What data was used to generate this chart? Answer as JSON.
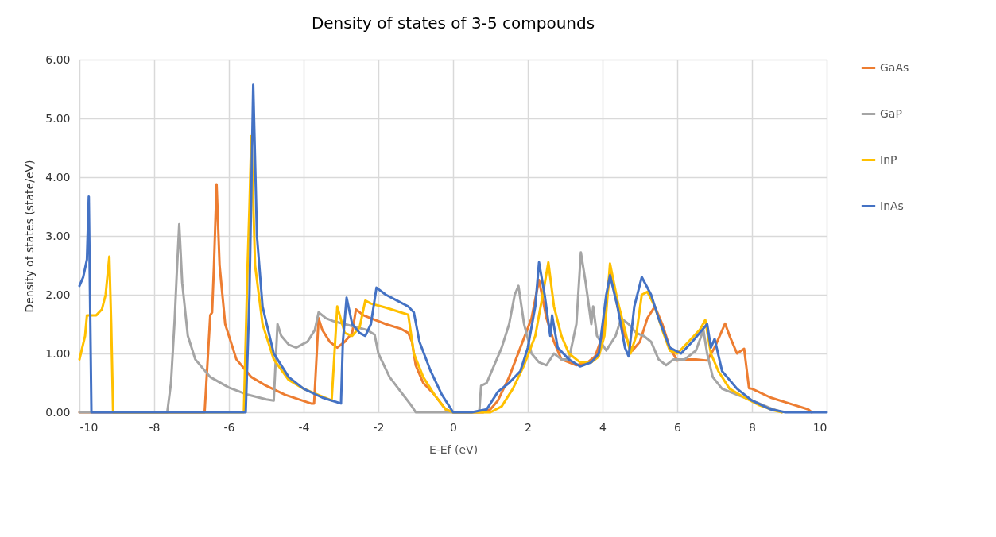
{
  "chart_data": {
    "type": "line",
    "title": "Density of states  of 3-5 compounds",
    "xlabel": "E-Ef (eV)",
    "ylabel": "Density of states (state/eV)",
    "xlim": [
      -10,
      10
    ],
    "xticks": [
      -10,
      -8,
      -6,
      -4,
      -2,
      0,
      2,
      4,
      6,
      8,
      10
    ],
    "ylim": [
      0,
      6
    ],
    "yticks": [
      {
        "value": 0,
        "label": "0.00"
      },
      {
        "value": 1,
        "label": "1.00"
      },
      {
        "value": 2,
        "label": "2.00"
      },
      {
        "value": 3,
        "label": "3.00"
      },
      {
        "value": 4,
        "label": "4.00"
      },
      {
        "value": 5,
        "label": "5.00"
      },
      {
        "value": 6,
        "label": "6.00"
      }
    ],
    "grid": true,
    "legend": "right",
    "marker": "none",
    "line_style": "solid",
    "series": [
      {
        "name": "GaAs",
        "color": "#ed7d31",
        "x": [
          -10,
          -6.65,
          -6.5,
          -6.45,
          -6.4,
          -6.33,
          -6.25,
          -6.1,
          -5.8,
          -5.4,
          -5,
          -4.5,
          -3.8,
          -3.72,
          -3.6,
          -3.5,
          -3.3,
          -3.1,
          -2.9,
          -2.7,
          -2.6,
          -2.4,
          -2.2,
          -1.8,
          -1.4,
          -1.2,
          -1.1,
          -1,
          -0.8,
          -0.5,
          -0.2,
          0,
          0.8,
          1,
          1.2,
          1.5,
          1.8,
          2.1,
          2.3,
          2.5,
          2.7,
          2.9,
          3.1,
          3.3,
          3.6,
          3.8,
          4,
          4.2,
          4.4,
          4.6,
          4.8,
          5,
          5.2,
          5.4,
          5.6,
          5.8,
          6,
          6.2,
          6.5,
          6.8,
          7,
          7.28,
          7.4,
          7.6,
          7.79,
          7.92,
          8,
          8.5,
          9,
          9.5,
          9.6
        ],
        "values": [
          0,
          0,
          1.65,
          1.7,
          2.5,
          3.88,
          2.5,
          1.5,
          0.9,
          0.6,
          0.45,
          0.3,
          0.15,
          0.15,
          1.6,
          1.4,
          1.2,
          1.1,
          1.2,
          1.35,
          1.75,
          1.65,
          1.6,
          1.5,
          1.42,
          1.35,
          1.2,
          0.8,
          0.5,
          0.3,
          0.05,
          0,
          0,
          0.05,
          0.2,
          0.6,
          1.1,
          1.6,
          2.25,
          1.6,
          1.2,
          0.9,
          0.85,
          0.8,
          0.85,
          0.95,
          1.3,
          2.4,
          1.8,
          1.3,
          1.05,
          1.2,
          1.6,
          1.8,
          1.5,
          1.1,
          0.88,
          0.9,
          0.9,
          0.88,
          1.1,
          1.51,
          1.3,
          1,
          1.08,
          0.41,
          0.4,
          0.25,
          0.15,
          0.05,
          0
        ]
      },
      {
        "name": "GaP",
        "color": "#a5a5a5",
        "x": [
          -10,
          -7.65,
          -7.55,
          -7.45,
          -7.4,
          -7.33,
          -7.25,
          -7.1,
          -6.9,
          -6.5,
          -6,
          -5.5,
          -5,
          -4.8,
          -4.7,
          -4.6,
          -4.4,
          -4.2,
          -3.9,
          -3.7,
          -3.6,
          -3.4,
          -3.2,
          -2.9,
          -2.6,
          -2.3,
          -2.1,
          -2,
          -1.7,
          -1.4,
          -1.1,
          -1,
          0.7,
          0.75,
          0.9,
          1.1,
          1.3,
          1.5,
          1.65,
          1.75,
          1.9,
          2.1,
          2.3,
          2.5,
          2.7,
          2.9,
          3.1,
          3.3,
          3.42,
          3.55,
          3.7,
          3.75,
          3.85,
          4.1,
          4.35,
          4.5,
          4.7,
          4.9,
          5.1,
          5.3,
          5.5,
          5.7,
          5.9,
          6.2,
          6.5,
          6.7,
          6.8,
          6.95,
          7.2,
          7.6,
          8,
          8.5,
          8.8
        ],
        "values": [
          0,
          0,
          0.5,
          1.6,
          2.3,
          3.2,
          2.2,
          1.3,
          0.9,
          0.6,
          0.42,
          0.3,
          0.22,
          0.2,
          1.5,
          1.3,
          1.15,
          1.1,
          1.2,
          1.4,
          1.7,
          1.6,
          1.55,
          1.5,
          1.45,
          1.4,
          1.32,
          1,
          0.6,
          0.35,
          0.1,
          0,
          0,
          0.45,
          0.5,
          0.8,
          1.1,
          1.5,
          2,
          2.15,
          1.5,
          1,
          0.85,
          0.8,
          1,
          0.9,
          0.9,
          1.5,
          2.72,
          2.2,
          1.5,
          1.8,
          1.3,
          1.05,
          1.3,
          1.6,
          1.5,
          1.35,
          1.3,
          1.2,
          0.9,
          0.8,
          0.9,
          0.9,
          1.05,
          1.4,
          1,
          0.6,
          0.4,
          0.3,
          0.2,
          0.07,
          0
        ]
      },
      {
        "name": "InP",
        "color": "#ffc000",
        "x": [
          -10,
          -9.85,
          -9.8,
          -9.7,
          -9.55,
          -9.4,
          -9.3,
          -9.2,
          -9.15,
          -9.1,
          -5.6,
          -5.5,
          -5.45,
          -5.4,
          -5.3,
          -5.1,
          -4.8,
          -4.4,
          -4,
          -3.25,
          -3.1,
          -2.9,
          -2.7,
          -2.5,
          -2.35,
          -2.2,
          -1.8,
          -1.4,
          -1.2,
          -1.05,
          -0.8,
          -0.5,
          -0.2,
          0,
          1,
          1.3,
          1.6,
          1.9,
          2.2,
          2.4,
          2.55,
          2.7,
          2.9,
          3.1,
          3.4,
          3.7,
          3.9,
          4.05,
          4.2,
          4.4,
          4.6,
          4.75,
          4.9,
          5.05,
          5.2,
          5.4,
          5.6,
          5.8,
          6,
          6.3,
          6.6,
          6.75,
          6.9,
          7.1,
          7.4,
          7.8,
          8.2,
          8.6,
          8.8
        ],
        "values": [
          0.9,
          1.3,
          1.65,
          1.65,
          1.65,
          1.75,
          2,
          2.65,
          1.5,
          0,
          0,
          2.5,
          3.5,
          4.7,
          2.5,
          1.5,
          0.9,
          0.55,
          0.4,
          0.2,
          1.8,
          1.35,
          1.3,
          1.45,
          1.9,
          1.85,
          1.78,
          1.7,
          1.66,
          1,
          0.6,
          0.3,
          0.05,
          0,
          0,
          0.1,
          0.4,
          0.8,
          1.3,
          2,
          2.55,
          1.8,
          1.3,
          1,
          0.85,
          0.85,
          0.95,
          1.3,
          2.53,
          1.9,
          1.4,
          1,
          1.3,
          2,
          2.05,
          1.8,
          1.4,
          1.05,
          1,
          1.2,
          1.4,
          1.57,
          1,
          0.7,
          0.4,
          0.25,
          0.12,
          0.03,
          0
        ]
      },
      {
        "name": "InAs",
        "color": "#4472c4",
        "x": [
          -10,
          -9.9,
          -9.8,
          -9.75,
          -9.68,
          -5.55,
          -5.45,
          -5.35,
          -5.25,
          -5.1,
          -4.8,
          -4.4,
          -4,
          -3.5,
          -3,
          -2.95,
          -2.85,
          -2.7,
          -2.5,
          -2.35,
          -2.2,
          -2.05,
          -1.8,
          -1.5,
          -1.2,
          -1.05,
          -0.9,
          -0.6,
          -0.3,
          -0.05,
          0,
          0.5,
          0.9,
          1.2,
          1.5,
          1.8,
          2,
          2.2,
          2.3,
          2.45,
          2.6,
          2.65,
          2.8,
          3.1,
          3.4,
          3.7,
          3.9,
          4.1,
          4.2,
          4.4,
          4.6,
          4.7,
          4.85,
          5.05,
          5.3,
          5.5,
          5.8,
          6.1,
          6.4,
          6.6,
          6.8,
          6.9,
          7,
          7.2,
          7.6,
          8,
          8.5,
          8.9,
          10
        ],
        "values": [
          2.15,
          2.3,
          2.6,
          3.67,
          0,
          0,
          2,
          5.57,
          3,
          1.8,
          1,
          0.6,
          0.4,
          0.25,
          0.15,
          1.2,
          1.95,
          1.5,
          1.35,
          1.3,
          1.5,
          2.12,
          2,
          1.9,
          1.8,
          1.7,
          1.2,
          0.7,
          0.3,
          0.05,
          0,
          0,
          0.05,
          0.35,
          0.5,
          0.7,
          1.1,
          1.8,
          2.55,
          2,
          1.3,
          1.65,
          1.1,
          0.9,
          0.78,
          0.85,
          1,
          2,
          2.33,
          1.8,
          1.1,
          0.95,
          1.8,
          2.3,
          2,
          1.6,
          1.1,
          1,
          1.2,
          1.35,
          1.5,
          1.1,
          1.25,
          0.7,
          0.4,
          0.2,
          0.05,
          0,
          0
        ]
      }
    ]
  }
}
